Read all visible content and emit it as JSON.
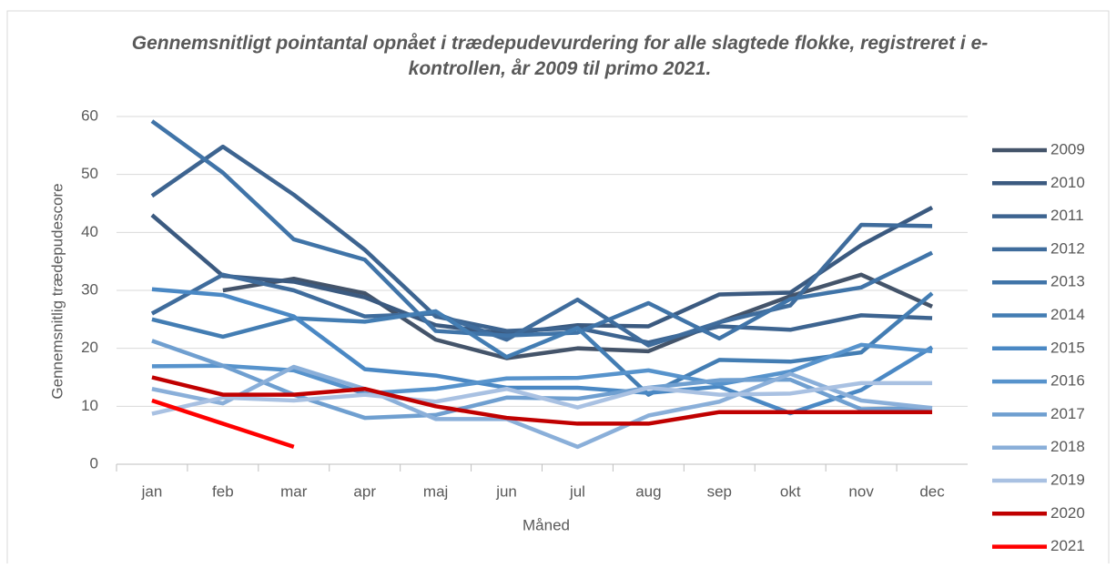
{
  "chart_data": {
    "type": "line",
    "title": "Gennemsnitligt pointantal opnået i trædepudevurdering for alle slagtede flokke, registreret i e-kontrollen, år 2009 til primo 2021.",
    "xlabel": "Måned",
    "ylabel": "Gennemsnitlig trædepudescore",
    "categories": [
      "jan",
      "feb",
      "mar",
      "apr",
      "maj",
      "jun",
      "jul",
      "aug",
      "sep",
      "okt",
      "nov",
      "dec"
    ],
    "ylim": [
      0,
      60
    ],
    "yticks": [
      0,
      10,
      20,
      30,
      40,
      50,
      60
    ],
    "grid": true,
    "legend": "right",
    "series": [
      {
        "name": "2009",
        "color": "#44546a",
        "values": [
          null,
          30,
          32,
          29.5,
          21.5,
          18.3,
          20,
          19.5,
          24.5,
          29,
          32.7,
          27.2
        ]
      },
      {
        "name": "2010",
        "color": "#3b5a80",
        "values": [
          43,
          32.5,
          31.5,
          28.8,
          24,
          22.5,
          24,
          23.8,
          29.3,
          29.6,
          37.8,
          44.3
        ]
      },
      {
        "name": "2011",
        "color": "#3d6490",
        "values": [
          46.3,
          54.8,
          46.5,
          37,
          25.5,
          23,
          23.5,
          21,
          23.8,
          23.2,
          25.7,
          25.2
        ]
      },
      {
        "name": "2012",
        "color": "#3f6c9c",
        "values": [
          26,
          32.7,
          30,
          25.5,
          26,
          21.5,
          28.4,
          20.5,
          24.5,
          27.4,
          41.3,
          41.1
        ]
      },
      {
        "name": "2013",
        "color": "#4074a8",
        "values": [
          59.2,
          50.3,
          38.8,
          35.3,
          23,
          22.2,
          22.7,
          27.8,
          21.7,
          28.5,
          30.5,
          36.5
        ]
      },
      {
        "name": "2014",
        "color": "#437db3",
        "values": [
          25,
          22,
          25.2,
          24.6,
          26.4,
          18.5,
          23.5,
          12,
          18,
          17.7,
          19.3,
          29.5
        ]
      },
      {
        "name": "2015",
        "color": "#4a88c4",
        "values": [
          30.2,
          29.2,
          25.5,
          16.4,
          15.3,
          13.2,
          13.2,
          12.3,
          13.4,
          8.8,
          12.8,
          20.2
        ]
      },
      {
        "name": "2016",
        "color": "#5793cc",
        "values": [
          16.9,
          17,
          16.2,
          12.2,
          13,
          14.8,
          14.9,
          16.2,
          13.8,
          16,
          20.6,
          19.5
        ]
      },
      {
        "name": "2017",
        "color": "#6f9fd0",
        "values": [
          21.3,
          17,
          12,
          8,
          8.5,
          11.5,
          11.3,
          13.2,
          14.5,
          14.6,
          9.5,
          9.7
        ]
      },
      {
        "name": "2018",
        "color": "#8aafd9",
        "values": [
          13,
          10.5,
          16.8,
          13,
          7.8,
          7.8,
          3,
          8.4,
          10.8,
          15.6,
          11,
          9.7
        ]
      },
      {
        "name": "2019",
        "color": "#a9c1e2",
        "values": [
          8.7,
          11.5,
          11,
          12,
          10.8,
          13,
          9.8,
          13.2,
          12,
          12.2,
          14,
          14
        ]
      },
      {
        "name": "2020",
        "color": "#c00000",
        "values": [
          15,
          12,
          12,
          13,
          10,
          8,
          7,
          7,
          9,
          9,
          9,
          9
        ]
      },
      {
        "name": "2021",
        "color": "#ff0000",
        "values": [
          11,
          7,
          3,
          null,
          null,
          null,
          null,
          null,
          null,
          null,
          null,
          null
        ]
      }
    ]
  }
}
